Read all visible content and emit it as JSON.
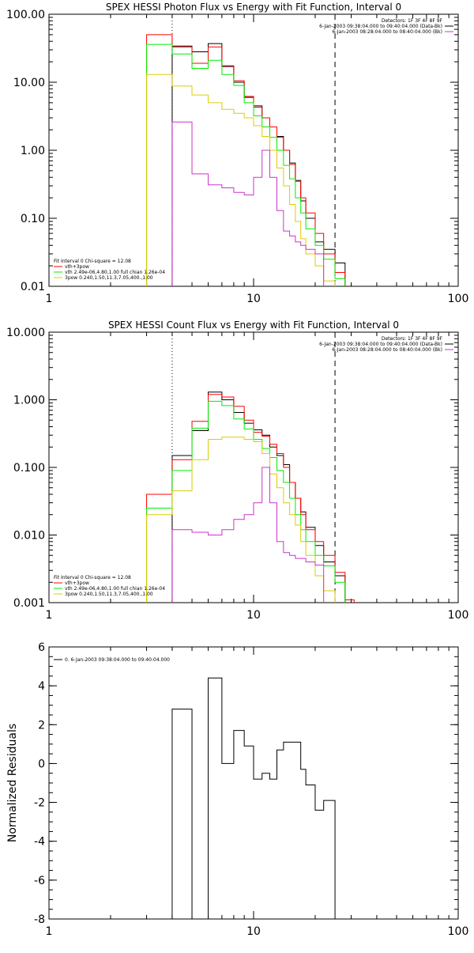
{
  "chart_data": [
    {
      "type": "line",
      "title": "SPEX HESSI Photon Flux vs Energy with Fit Function, Interval 0",
      "xscale": "log",
      "yscale": "log",
      "xlim": [
        1,
        100
      ],
      "ylim": [
        0.01,
        100
      ],
      "x_ticks": [
        {
          "v": 1,
          "label": "1"
        },
        {
          "v": 10,
          "label": "10"
        },
        {
          "v": 100,
          "label": "100"
        }
      ],
      "y_ticks": [
        {
          "v": 0.01,
          "label": "0.01"
        },
        {
          "v": 0.1,
          "label": "0.10"
        },
        {
          "v": 1,
          "label": "1.00"
        },
        {
          "v": 10,
          "label": "10.00"
        },
        {
          "v": 100,
          "label": "100.00"
        }
      ],
      "vlines": [
        {
          "x": 4.0,
          "style": "dotted"
        },
        {
          "x": 25.0,
          "style": "dashed"
        }
      ],
      "info_lines": [
        "Detectors: 1F 3F 4F 8F 9F",
        "6-Jan-2003 09:38:04.000 to 09:40:04.000 (Data-Bk)",
        "6-Jan-2003 08:28:04.000 to 08:40:04.000 (Bk)"
      ],
      "info_colors": [
        "",
        "#000000",
        "#cc33cc"
      ],
      "legend_lines": [
        "Fit Interval 0   Chi-square = 12.08",
        "vth+3pow",
        "vth 2.49e-06,4.80,1.00  full chian 1.26e-04",
        "3pow 0.240,1.50,11.3,7.05,400.,1.00"
      ],
      "legend_colors": [
        "",
        "#ff0000",
        "#00ee00",
        "#ddcc00"
      ],
      "edges": [
        3.0,
        4.0,
        5.0,
        6.0,
        7.0,
        8.0,
        9.0,
        10.0,
        11.0,
        12.0,
        13.0,
        14.0,
        15.0,
        16.0,
        17.0,
        18.0,
        20.0,
        22.0,
        25.0,
        28.0,
        31.0
      ],
      "series": [
        {
          "color": "#000000",
          "values": [
            0.009,
            34.0,
            28.0,
            37.0,
            17.0,
            10.0,
            6.0,
            4.5,
            3.0,
            2.2,
            1.6,
            1.0,
            0.65,
            0.36,
            0.18,
            0.1,
            0.045,
            0.035,
            0.022,
            0.009
          ]
        },
        {
          "color": "#ff0000",
          "values": [
            50.0,
            33.0,
            19.0,
            33.0,
            17.5,
            10.5,
            6.2,
            4.3,
            3.0,
            2.2,
            1.55,
            1.0,
            0.62,
            0.35,
            0.2,
            0.12,
            0.06,
            0.03,
            0.016,
            0.009
          ]
        },
        {
          "color": "#00ee00",
          "values": [
            36.0,
            26.0,
            16.0,
            21.0,
            13.0,
            9.0,
            5.0,
            3.2,
            2.2,
            1.55,
            1.0,
            0.6,
            0.38,
            0.2,
            0.12,
            0.07,
            0.04,
            0.025,
            0.013,
            0.009
          ]
        },
        {
          "color": "#ddcc00",
          "values": [
            13.0,
            8.8,
            6.5,
            5.0,
            4.0,
            3.5,
            3.0,
            2.3,
            1.6,
            1.0,
            0.55,
            0.3,
            0.16,
            0.09,
            0.05,
            0.03,
            0.02,
            0.012,
            0.009,
            0.009
          ]
        },
        {
          "color": "#cc33cc",
          "values": [
            0.009,
            2.6,
            0.45,
            0.31,
            0.28,
            0.24,
            0.22,
            0.4,
            1.0,
            0.4,
            0.13,
            0.065,
            0.055,
            0.045,
            0.04,
            0.035,
            0.03,
            0.009,
            0.009,
            0.009
          ]
        }
      ]
    },
    {
      "type": "line",
      "title": "SPEX HESSI Count Flux vs Energy with Fit Function, Interval 0",
      "xscale": "log",
      "yscale": "log",
      "xlim": [
        1,
        100
      ],
      "ylim": [
        0.001,
        10
      ],
      "x_ticks": [
        {
          "v": 1,
          "label": "1"
        },
        {
          "v": 10,
          "label": "10"
        },
        {
          "v": 100,
          "label": "100"
        }
      ],
      "y_ticks": [
        {
          "v": 0.001,
          "label": "0.001"
        },
        {
          "v": 0.01,
          "label": "0.010"
        },
        {
          "v": 0.1,
          "label": "0.100"
        },
        {
          "v": 1,
          "label": "1.000"
        },
        {
          "v": 10,
          "label": "10.000"
        }
      ],
      "vlines": [
        {
          "x": 4.0,
          "style": "dotted"
        },
        {
          "x": 25.0,
          "style": "dashed"
        }
      ],
      "info_lines": [
        "Detectors: 1F 3F 4F 8F 9F",
        "6-Jan-2003 09:38:04.000 to 09:40:04.000 (Data-Bk)",
        "6-Jan-2003 08:28:04.000 to 08:40:04.000 (Bk)"
      ],
      "info_colors": [
        "",
        "#000000",
        "#cc33cc"
      ],
      "legend_lines": [
        "Fit Interval 0   Chi-square = 12.08",
        "vth+3pow",
        "vth 2.49e-06,4.80,1.00  full chian 1.26e-04",
        "3pow 0.240,1.50,11.3,7.05,400.,1.00"
      ],
      "legend_colors": [
        "",
        "#ff0000",
        "#00ee00",
        "#ddcc00"
      ],
      "edges": [
        3.0,
        4.0,
        5.0,
        6.0,
        7.0,
        8.0,
        9.0,
        10.0,
        11.0,
        12.0,
        13.0,
        14.0,
        15.0,
        16.0,
        17.0,
        18.0,
        20.0,
        22.0,
        25.0,
        28.0,
        31.0
      ],
      "series": [
        {
          "color": "#000000",
          "values": [
            0.0009,
            0.15,
            0.35,
            1.3,
            1.0,
            0.65,
            0.45,
            0.36,
            0.3,
            0.2,
            0.15,
            0.11,
            0.06,
            0.035,
            0.022,
            0.013,
            0.007,
            0.004,
            0.0025,
            0.0009
          ]
        },
        {
          "color": "#ff0000",
          "values": [
            0.04,
            0.13,
            0.48,
            1.2,
            1.1,
            0.8,
            0.5,
            0.33,
            0.29,
            0.22,
            0.16,
            0.1,
            0.06,
            0.035,
            0.02,
            0.012,
            0.008,
            0.005,
            0.0028,
            0.0011
          ]
        },
        {
          "color": "#00ee00",
          "values": [
            0.025,
            0.09,
            0.38,
            0.95,
            0.82,
            0.52,
            0.37,
            0.26,
            0.19,
            0.14,
            0.09,
            0.06,
            0.035,
            0.02,
            0.012,
            0.008,
            0.005,
            0.0035,
            0.002,
            0.0009
          ]
        },
        {
          "color": "#ddcc00",
          "values": [
            0.02,
            0.045,
            0.13,
            0.26,
            0.28,
            0.28,
            0.26,
            0.24,
            0.16,
            0.08,
            0.05,
            0.03,
            0.02,
            0.014,
            0.008,
            0.005,
            0.0025,
            0.0015,
            0.0009,
            0.0009
          ]
        },
        {
          "color": "#cc33cc",
          "values": [
            0.0009,
            0.012,
            0.011,
            0.01,
            0.012,
            0.017,
            0.02,
            0.03,
            0.1,
            0.03,
            0.008,
            0.0055,
            0.005,
            0.0045,
            0.0045,
            0.004,
            0.0036,
            0.0009,
            0.0009,
            0.0009
          ]
        }
      ]
    },
    {
      "type": "line",
      "title": "",
      "ylabel": "Normalized Residuals",
      "xscale": "log",
      "yscale": "linear",
      "xlim": [
        1,
        100
      ],
      "ylim": [
        -8,
        6
      ],
      "x_ticks": [
        {
          "v": 1,
          "label": "1"
        },
        {
          "v": 10,
          "label": "10"
        },
        {
          "v": 100,
          "label": "100"
        }
      ],
      "y_ticks": [
        {
          "v": -8,
          "label": "-8"
        },
        {
          "v": -6,
          "label": "-6"
        },
        {
          "v": -4,
          "label": "-4"
        },
        {
          "v": -2,
          "label": "-2"
        },
        {
          "v": 0,
          "label": "0"
        },
        {
          "v": 2,
          "label": "2"
        },
        {
          "v": 4,
          "label": "4"
        },
        {
          "v": 6,
          "label": "6"
        }
      ],
      "legend_lines": [
        "0.  6-Jan-2003 09:38:04.000 to 09:40:04.000"
      ],
      "legend_colors": [
        "#000000"
      ],
      "edges": [
        4.0,
        5.0,
        6.0,
        7.0,
        8.0,
        9.0,
        10.0,
        11.0,
        12.0,
        13.0,
        14.0,
        15.0,
        16.0,
        17.0,
        18.0,
        20.0,
        22.0,
        25.0
      ],
      "series": [
        {
          "color": "#000000",
          "values": [
            2.8,
            -8.1,
            4.4,
            0.0,
            1.7,
            0.9,
            -0.8,
            -0.5,
            -0.8,
            0.7,
            1.1,
            1.1,
            1.1,
            -0.3,
            -1.1,
            -2.4,
            -1.9
          ]
        }
      ]
    }
  ]
}
